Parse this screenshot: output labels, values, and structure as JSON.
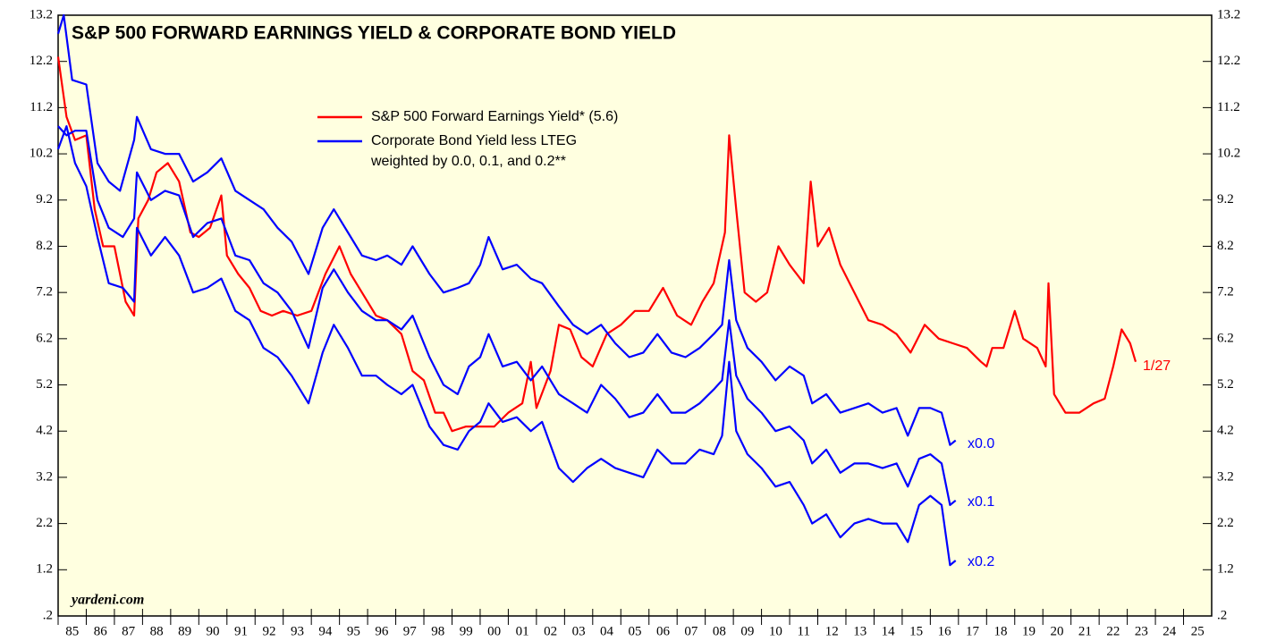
{
  "chart_data": {
    "type": "line",
    "title": "S&P 500 FORWARD EARNINGS YIELD & CORPORATE BOND YIELD",
    "source": "yardeni.com",
    "legend_blue": [
      "Corporate Bond Yield less LTEG",
      "weighted by 0.0, 0.1, and 0.2**"
    ],
    "end_label": "1/27",
    "xlim": [
      1985,
      2026
    ],
    "xticks": [
      {
        "value": 1985,
        "label": "85"
      },
      {
        "value": 1986,
        "label": "86"
      },
      {
        "value": 1987,
        "label": "87"
      },
      {
        "value": 1988,
        "label": "88"
      },
      {
        "value": 1989,
        "label": "89"
      },
      {
        "value": 1990,
        "label": "90"
      },
      {
        "value": 1991,
        "label": "91"
      },
      {
        "value": 1992,
        "label": "92"
      },
      {
        "value": 1993,
        "label": "93"
      },
      {
        "value": 1994,
        "label": "94"
      },
      {
        "value": 1995,
        "label": "95"
      },
      {
        "value": 1996,
        "label": "96"
      },
      {
        "value": 1997,
        "label": "97"
      },
      {
        "value": 1998,
        "label": "98"
      },
      {
        "value": 1999,
        "label": "99"
      },
      {
        "value": 2000,
        "label": "00"
      },
      {
        "value": 2001,
        "label": "01"
      },
      {
        "value": 2002,
        "label": "02"
      },
      {
        "value": 2003,
        "label": "03"
      },
      {
        "value": 2004,
        "label": "04"
      },
      {
        "value": 2005,
        "label": "05"
      },
      {
        "value": 2006,
        "label": "06"
      },
      {
        "value": 2007,
        "label": "07"
      },
      {
        "value": 2008,
        "label": "08"
      },
      {
        "value": 2009,
        "label": "09"
      },
      {
        "value": 2010,
        "label": "10"
      },
      {
        "value": 2011,
        "label": "11"
      },
      {
        "value": 2012,
        "label": "12"
      },
      {
        "value": 2013,
        "label": "13"
      },
      {
        "value": 2014,
        "label": "14"
      },
      {
        "value": 2015,
        "label": "15"
      },
      {
        "value": 2016,
        "label": "16"
      },
      {
        "value": 2017,
        "label": "17"
      },
      {
        "value": 2018,
        "label": "18"
      },
      {
        "value": 2019,
        "label": "19"
      },
      {
        "value": 2020,
        "label": "20"
      },
      {
        "value": 2021,
        "label": "21"
      },
      {
        "value": 2022,
        "label": "22"
      },
      {
        "value": 2023,
        "label": "23"
      },
      {
        "value": 2024,
        "label": "24"
      },
      {
        "value": 2025,
        "label": "25"
      }
    ],
    "ylim": [
      0.2,
      13.2
    ],
    "yticks": [
      {
        "value": 0.2,
        "label": ".2"
      },
      1.2,
      2.2,
      3.2,
      4.2,
      5.2,
      6.2,
      7.2,
      8.2,
      9.2,
      10.2,
      11.2,
      12.2,
      13.2
    ],
    "series": [
      {
        "name": "S&P 500 Forward Earnings Yield* (5.6)",
        "color": "#ff0000",
        "x": [
          1985.0,
          1985.3,
          1985.6,
          1986.0,
          1986.3,
          1986.6,
          1987.0,
          1987.4,
          1987.7,
          1987.85,
          1988.2,
          1988.5,
          1988.9,
          1989.3,
          1989.7,
          1990.0,
          1990.4,
          1990.8,
          1991.0,
          1991.4,
          1991.8,
          1992.2,
          1992.6,
          1993.0,
          1993.5,
          1994.0,
          1994.5,
          1995.0,
          1995.4,
          1995.8,
          1996.3,
          1996.7,
          1997.2,
          1997.6,
          1998.0,
          1998.4,
          1998.7,
          1999.0,
          1999.5,
          2000.0,
          2000.5,
          2001.0,
          2001.5,
          2001.8,
          2002.0,
          2002.5,
          2002.8,
          2003.2,
          2003.6,
          2004.0,
          2004.5,
          2005.0,
          2005.5,
          2006.0,
          2006.5,
          2007.0,
          2007.5,
          2007.9,
          2008.3,
          2008.7,
          2008.85,
          2009.1,
          2009.4,
          2009.8,
          2010.2,
          2010.6,
          2011.0,
          2011.5,
          2011.75,
          2012.0,
          2012.4,
          2012.8,
          2013.3,
          2013.8,
          2014.3,
          2014.8,
          2015.3,
          2015.8,
          2016.3,
          2016.8,
          2017.3,
          2017.8,
          2018.0,
          2018.2,
          2018.6,
          2019.0,
          2019.3,
          2019.8,
          2020.1,
          2020.2,
          2020.4,
          2020.8,
          2021.3,
          2021.8,
          2022.2,
          2022.5,
          2022.8,
          2023.1,
          2023.3
        ],
        "values": [
          12.3,
          11.0,
          10.5,
          10.6,
          9.0,
          8.2,
          8.2,
          7.0,
          6.7,
          8.8,
          9.2,
          9.8,
          10.0,
          9.6,
          8.5,
          8.4,
          8.6,
          9.3,
          8.0,
          7.6,
          7.3,
          6.8,
          6.7,
          6.8,
          6.7,
          6.8,
          7.6,
          8.2,
          7.6,
          7.2,
          6.7,
          6.6,
          6.3,
          5.5,
          5.3,
          4.6,
          4.6,
          4.2,
          4.3,
          4.3,
          4.3,
          4.6,
          4.8,
          5.7,
          4.7,
          5.5,
          6.5,
          6.4,
          5.8,
          5.6,
          6.3,
          6.5,
          6.8,
          6.8,
          7.3,
          6.7,
          6.5,
          7.0,
          7.4,
          8.5,
          10.6,
          9.0,
          7.2,
          7.0,
          7.2,
          8.2,
          7.8,
          7.4,
          9.6,
          8.2,
          8.6,
          7.8,
          7.2,
          6.6,
          6.5,
          6.3,
          5.9,
          6.5,
          6.2,
          6.1,
          6.0,
          5.7,
          5.6,
          6.0,
          6.0,
          6.8,
          6.2,
          6.0,
          5.6,
          7.4,
          5.0,
          4.6,
          4.6,
          4.8,
          4.9,
          5.6,
          6.4,
          6.1,
          5.7
        ]
      },
      {
        "name": "x0.0",
        "color": "#0000ff",
        "x": [
          1985.0,
          1985.2,
          1985.5,
          1986.0,
          1986.4,
          1986.8,
          1987.2,
          1987.7,
          1987.8,
          1988.3,
          1988.8,
          1989.3,
          1989.8,
          1990.3,
          1990.8,
          1991.3,
          1991.8,
          1992.3,
          1992.8,
          1993.3,
          1993.9,
          1994.4,
          1994.8,
          1995.3,
          1995.8,
          1996.3,
          1996.7,
          1997.2,
          1997.6,
          1998.2,
          1998.7,
          1999.2,
          1999.6,
          2000.0,
          2000.3,
          2000.8,
          2001.3,
          2001.8,
          2002.2,
          2002.8,
          2003.3,
          2003.8,
          2004.3,
          2004.8,
          2005.3,
          2005.8,
          2006.3,
          2006.8,
          2007.3,
          2007.8,
          2008.3,
          2008.6,
          2008.85,
          2009.1,
          2009.5,
          2010.0,
          2010.5,
          2011.0,
          2011.5,
          2011.8,
          2012.3,
          2012.8,
          2013.3,
          2013.8,
          2014.3,
          2014.8,
          2015.2,
          2015.6,
          2016.0,
          2016.4,
          2016.7,
          2016.9
        ],
        "values": [
          12.8,
          13.2,
          11.8,
          11.7,
          10.0,
          9.6,
          9.4,
          10.5,
          11.0,
          10.3,
          10.2,
          10.2,
          9.6,
          9.8,
          10.1,
          9.4,
          9.2,
          9.0,
          8.6,
          8.3,
          7.6,
          8.6,
          9.0,
          8.5,
          8.0,
          7.9,
          8.0,
          7.8,
          8.2,
          7.6,
          7.2,
          7.3,
          7.4,
          7.8,
          8.4,
          7.7,
          7.8,
          7.5,
          7.4,
          6.9,
          6.5,
          6.3,
          6.5,
          6.1,
          5.8,
          5.9,
          6.3,
          5.9,
          5.8,
          6.0,
          6.3,
          6.5,
          7.9,
          6.6,
          6.0,
          5.7,
          5.3,
          5.6,
          5.4,
          4.8,
          5.0,
          4.6,
          4.7,
          4.8,
          4.6,
          4.7,
          4.1,
          4.7,
          4.7,
          4.6,
          3.9,
          4.0
        ]
      },
      {
        "name": "x0.1",
        "color": "#0000ff",
        "x": [
          1985.0,
          1985.3,
          1985.6,
          1986.0,
          1986.4,
          1986.8,
          1987.3,
          1987.7,
          1987.8,
          1988.3,
          1988.8,
          1989.3,
          1989.8,
          1990.3,
          1990.8,
          1991.3,
          1991.8,
          1992.3,
          1992.8,
          1993.3,
          1993.9,
          1994.4,
          1994.8,
          1995.3,
          1995.8,
          1996.3,
          1996.7,
          1997.2,
          1997.6,
          1998.2,
          1998.7,
          1999.2,
          1999.6,
          2000.0,
          2000.3,
          2000.8,
          2001.3,
          2001.8,
          2002.2,
          2002.8,
          2003.3,
          2003.8,
          2004.3,
          2004.8,
          2005.3,
          2005.8,
          2006.3,
          2006.8,
          2007.3,
          2007.8,
          2008.3,
          2008.6,
          2008.85,
          2009.1,
          2009.5,
          2010.0,
          2010.5,
          2011.0,
          2011.5,
          2011.8,
          2012.3,
          2012.8,
          2013.3,
          2013.8,
          2014.3,
          2014.8,
          2015.2,
          2015.6,
          2016.0,
          2016.4,
          2016.7,
          2016.9
        ],
        "values": [
          10.8,
          10.6,
          10.7,
          10.7,
          9.2,
          8.6,
          8.4,
          8.8,
          9.8,
          9.2,
          9.4,
          9.3,
          8.4,
          8.7,
          8.8,
          8.0,
          7.9,
          7.4,
          7.2,
          6.8,
          6.0,
          7.3,
          7.7,
          7.2,
          6.8,
          6.6,
          6.6,
          6.4,
          6.7,
          5.8,
          5.2,
          5.0,
          5.6,
          5.8,
          6.3,
          5.6,
          5.7,
          5.3,
          5.6,
          5.0,
          4.8,
          4.6,
          5.2,
          4.9,
          4.5,
          4.6,
          5.0,
          4.6,
          4.6,
          4.8,
          5.1,
          5.3,
          6.6,
          5.4,
          4.9,
          4.6,
          4.2,
          4.3,
          4.0,
          3.5,
          3.8,
          3.3,
          3.5,
          3.5,
          3.4,
          3.5,
          3.0,
          3.6,
          3.7,
          3.5,
          2.6,
          2.7
        ]
      },
      {
        "name": "x0.2",
        "color": "#0000ff",
        "x": [
          1985.0,
          1985.3,
          1985.6,
          1986.0,
          1986.4,
          1986.8,
          1987.3,
          1987.7,
          1987.8,
          1988.3,
          1988.8,
          1989.3,
          1989.8,
          1990.3,
          1990.8,
          1991.3,
          1991.8,
          1992.3,
          1992.8,
          1993.3,
          1993.9,
          1994.4,
          1994.8,
          1995.3,
          1995.8,
          1996.3,
          1996.7,
          1997.2,
          1997.6,
          1998.2,
          1998.7,
          1999.2,
          1999.6,
          2000.0,
          2000.3,
          2000.8,
          2001.3,
          2001.8,
          2002.2,
          2002.8,
          2003.3,
          2003.8,
          2004.3,
          2004.8,
          2005.3,
          2005.8,
          2006.3,
          2006.8,
          2007.3,
          2007.8,
          2008.3,
          2008.6,
          2008.85,
          2009.1,
          2009.5,
          2010.0,
          2010.5,
          2011.0,
          2011.5,
          2011.8,
          2012.3,
          2012.8,
          2013.3,
          2013.8,
          2014.3,
          2014.8,
          2015.2,
          2015.6,
          2016.0,
          2016.4,
          2016.7,
          2016.9
        ],
        "values": [
          10.3,
          10.8,
          10.0,
          9.5,
          8.4,
          7.4,
          7.3,
          7.0,
          8.6,
          8.0,
          8.4,
          8.0,
          7.2,
          7.3,
          7.5,
          6.8,
          6.6,
          6.0,
          5.8,
          5.4,
          4.8,
          5.9,
          6.5,
          6.0,
          5.4,
          5.4,
          5.2,
          5.0,
          5.2,
          4.3,
          3.9,
          3.8,
          4.2,
          4.4,
          4.8,
          4.4,
          4.5,
          4.2,
          4.4,
          3.4,
          3.1,
          3.4,
          3.6,
          3.4,
          3.3,
          3.2,
          3.8,
          3.5,
          3.5,
          3.8,
          3.7,
          4.1,
          5.7,
          4.2,
          3.7,
          3.4,
          3.0,
          3.1,
          2.6,
          2.2,
          2.4,
          1.9,
          2.2,
          2.3,
          2.2,
          2.2,
          1.8,
          2.6,
          2.8,
          2.6,
          1.3,
          1.4
        ]
      }
    ]
  }
}
